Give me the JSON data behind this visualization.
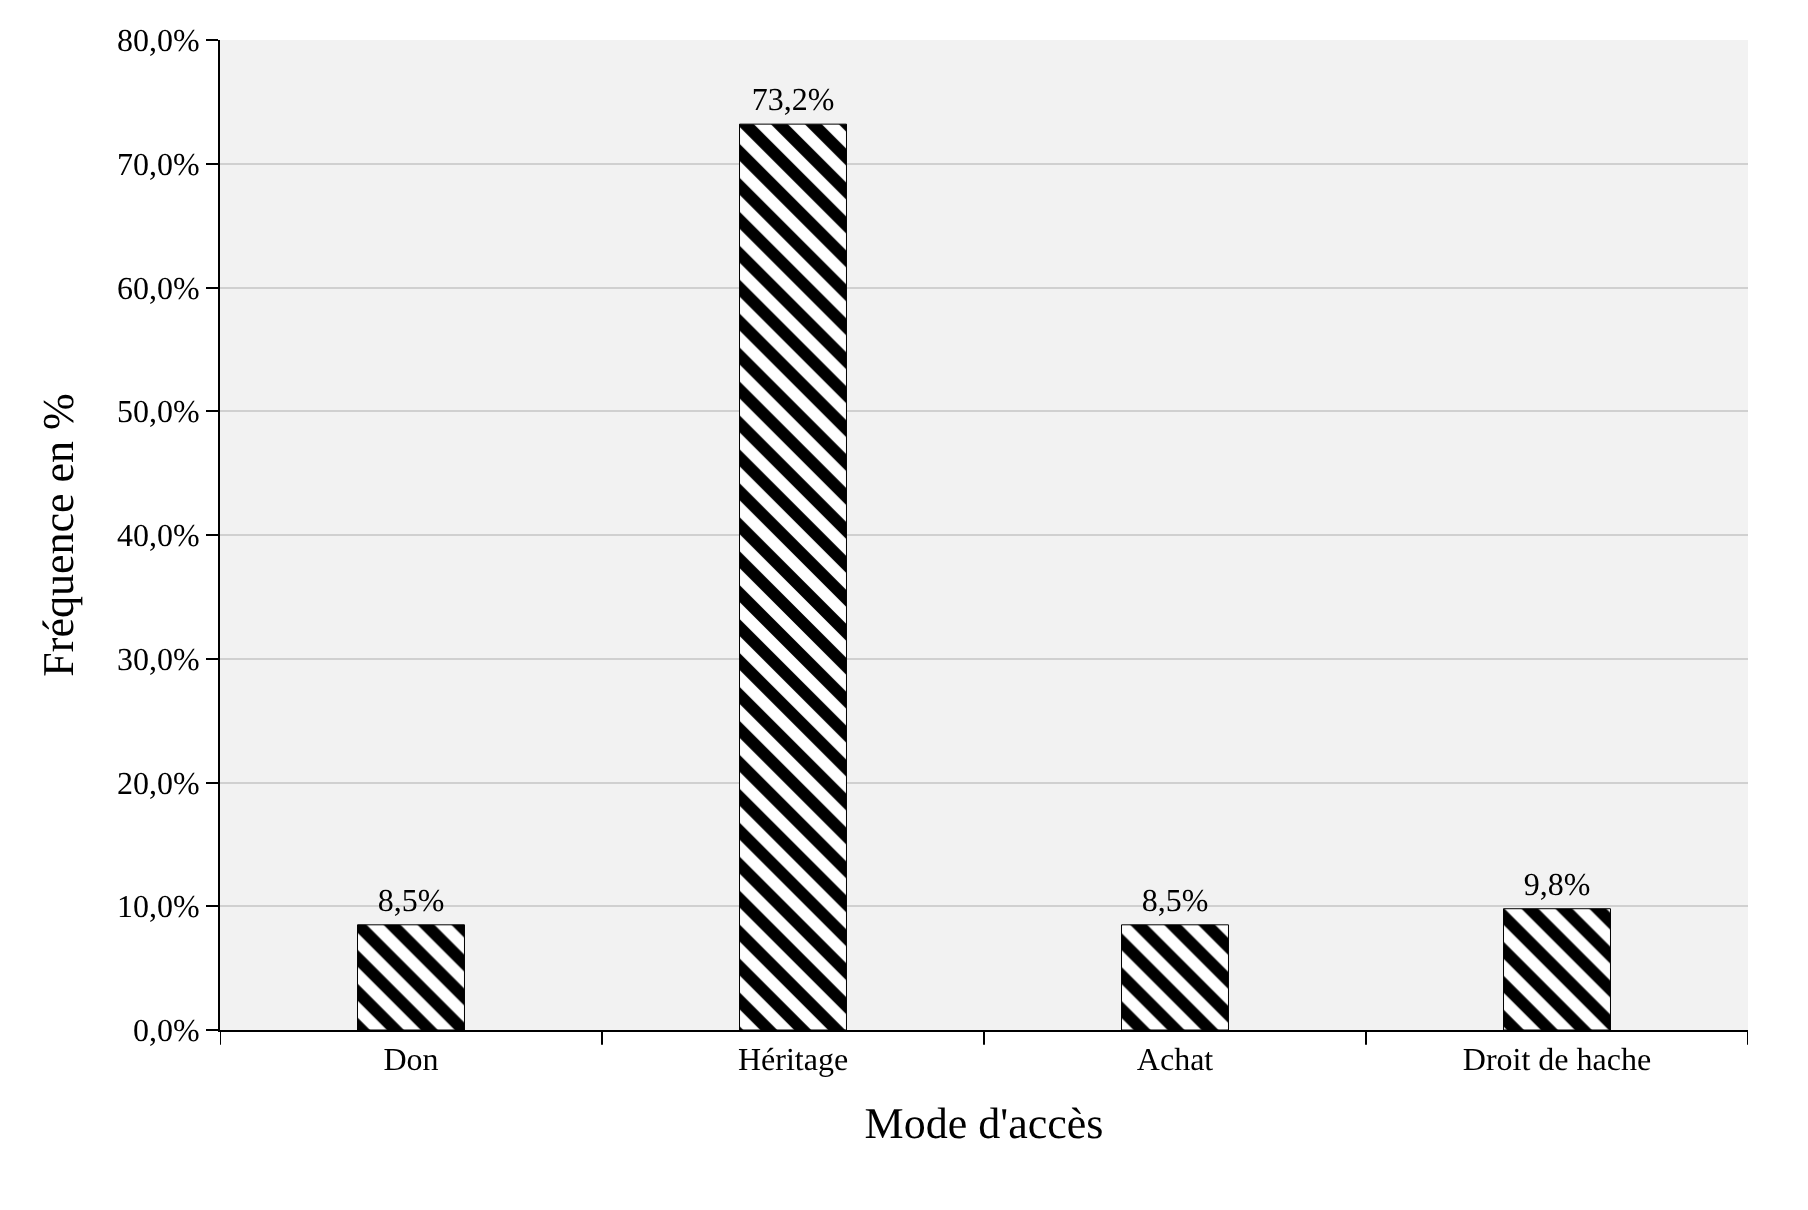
{
  "chart_data": {
    "type": "bar",
    "xlabel": "Mode d'accès",
    "ylabel": "Fréquence en %",
    "categories": [
      "Don",
      "Héritage",
      "Achat",
      "Droit de hache"
    ],
    "values": [
      8.5,
      73.2,
      8.5,
      9.8
    ],
    "value_labels": [
      "8,5%",
      "73,2%",
      "8,5%",
      "9,8%"
    ],
    "color": "#000000",
    "ylim": [
      0,
      80
    ],
    "yticks": [
      {
        "value": 0,
        "label": "0,0%"
      },
      {
        "value": 10,
        "label": "10,0%"
      },
      {
        "value": 20,
        "label": "20,0%"
      },
      {
        "value": 30,
        "label": "30,0%"
      },
      {
        "value": 40,
        "label": "40,0%"
      },
      {
        "value": 50,
        "label": "50,0%"
      },
      {
        "value": 60,
        "label": "60,0%"
      },
      {
        "value": 70,
        "label": "70,0%"
      },
      {
        "value": 80,
        "label": "80,0%"
      }
    ],
    "grid": "y"
  }
}
